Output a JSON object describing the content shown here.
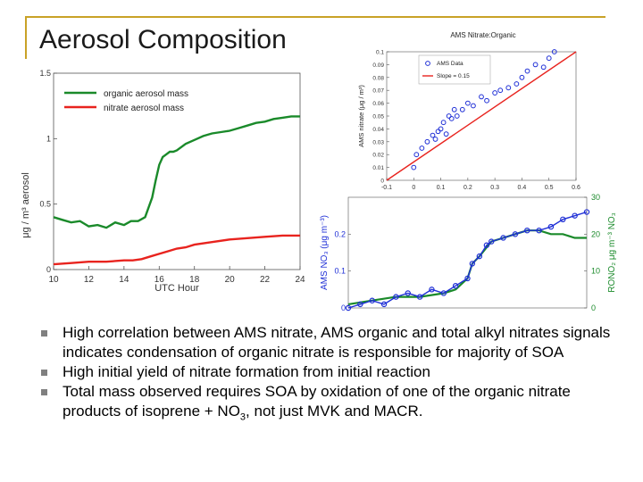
{
  "slide": {
    "title": "Aerosol Composition",
    "bullets": [
      {
        "text": "High correlation between AMS nitrate, AMS organic and total alkyl nitrates signals indicates condensation of organic nitrate is responsible for majority of SOA"
      },
      {
        "text": "High initial yield of nitrate formation from initial reaction"
      },
      {
        "pre": "Total mass observed requires SOA by oxidation of one of the organic nitrate products of isoprene + NO",
        "sub": "3",
        "post": ", not just MVK and MACR."
      }
    ]
  },
  "chart_data": [
    {
      "type": "line",
      "title": "",
      "xlabel": "UTC Hour",
      "ylabel": "μg / m³ aerosol",
      "xlim": [
        10,
        24
      ],
      "ylim": [
        0,
        1.5
      ],
      "xticks": [
        "10",
        "12",
        "14",
        "16",
        "18",
        "20",
        "22",
        "24"
      ],
      "yticks": [
        "0",
        "0.5",
        "1",
        "1.5"
      ],
      "legend_position": "top-left",
      "grid": false,
      "series": [
        {
          "name": "organic aerosol mass",
          "color": "#1a8a2a",
          "x": [
            10,
            10.5,
            11,
            11.5,
            12,
            12.5,
            13,
            13.5,
            14,
            14.4,
            14.8,
            15.2,
            15.6,
            15.8,
            16.0,
            16.2,
            16.4,
            16.6,
            16.8,
            17.0,
            17.5,
            18,
            18.5,
            19,
            19.5,
            20,
            20.5,
            21,
            21.5,
            22,
            22.5,
            23,
            23.5,
            24
          ],
          "values": [
            0.4,
            0.38,
            0.36,
            0.37,
            0.33,
            0.34,
            0.32,
            0.36,
            0.34,
            0.37,
            0.37,
            0.4,
            0.55,
            0.68,
            0.8,
            0.86,
            0.88,
            0.9,
            0.9,
            0.91,
            0.96,
            0.99,
            1.02,
            1.04,
            1.05,
            1.06,
            1.08,
            1.1,
            1.12,
            1.13,
            1.15,
            1.16,
            1.17,
            1.17
          ]
        },
        {
          "name": "nitrate aerosol mass",
          "color": "#e8231e",
          "x": [
            10,
            11,
            12,
            13,
            14,
            14.5,
            15,
            15.5,
            16,
            16.5,
            17,
            17.5,
            18,
            19,
            20,
            21,
            22,
            23,
            24
          ],
          "values": [
            0.04,
            0.05,
            0.06,
            0.06,
            0.07,
            0.07,
            0.08,
            0.1,
            0.12,
            0.14,
            0.16,
            0.17,
            0.19,
            0.21,
            0.23,
            0.24,
            0.25,
            0.26,
            0.26
          ]
        }
      ]
    },
    {
      "type": "scatter",
      "title": "AMS Nitrate:Organic",
      "xlabel": "",
      "ylabel": "AMS nitrate (μg / m³)",
      "xlim": [
        -0.1,
        0.6
      ],
      "ylim": [
        0,
        0.1
      ],
      "xticks": [
        "-0.1",
        "0",
        "0.1",
        "0.2",
        "0.3",
        "0.4",
        "0.5",
        "0.6"
      ],
      "yticks": [
        "0",
        "0.01",
        "0.02",
        "0.03",
        "0.04",
        "0.05",
        "0.06",
        "0.07",
        "0.08",
        "0.09",
        "0.1"
      ],
      "legend_position": "top-left",
      "grid": false,
      "series": [
        {
          "name": "AMS Data",
          "color": "#1f2fd6",
          "marker": "circle",
          "x": [
            0.0,
            0.01,
            0.03,
            0.05,
            0.07,
            0.08,
            0.09,
            0.1,
            0.11,
            0.12,
            0.13,
            0.14,
            0.15,
            0.16,
            0.18,
            0.2,
            0.22,
            0.25,
            0.27,
            0.3,
            0.32,
            0.35,
            0.38,
            0.4,
            0.42,
            0.45,
            0.48,
            0.5,
            0.52
          ],
          "values": [
            0.01,
            0.02,
            0.025,
            0.03,
            0.035,
            0.032,
            0.038,
            0.04,
            0.045,
            0.036,
            0.05,
            0.048,
            0.055,
            0.05,
            0.055,
            0.06,
            0.058,
            0.065,
            0.062,
            0.068,
            0.07,
            0.072,
            0.075,
            0.08,
            0.085,
            0.09,
            0.088,
            0.095,
            0.1
          ]
        },
        {
          "name": "Slope = 0.15",
          "color": "#e8231e",
          "type": "line",
          "x": [
            -0.1,
            0.6
          ],
          "values": [
            -0.012,
            0.1
          ]
        }
      ]
    },
    {
      "type": "line",
      "title": "",
      "xlabel": "",
      "ylabel": "AMS NO₃ (μg m⁻³)",
      "y2label": "RONO₂ μg m⁻³ NO₃",
      "ylim": [
        0,
        0.3
      ],
      "y2lim": [
        0,
        30
      ],
      "yticks": [
        "0",
        "0.1",
        "0.2"
      ],
      "y2ticks": [
        "0",
        "10",
        "20",
        "30"
      ],
      "grid": false,
      "series": [
        {
          "name": "AMS NO3",
          "color": "#1f2fd6",
          "marker": "circle",
          "x": [
            0,
            0.05,
            0.1,
            0.15,
            0.2,
            0.25,
            0.3,
            0.35,
            0.4,
            0.45,
            0.5,
            0.52,
            0.55,
            0.58,
            0.6,
            0.65,
            0.7,
            0.75,
            0.8,
            0.85,
            0.9,
            0.95,
            1.0
          ],
          "values": [
            0.0,
            0.01,
            0.02,
            0.01,
            0.03,
            0.04,
            0.03,
            0.05,
            0.04,
            0.06,
            0.08,
            0.12,
            0.14,
            0.17,
            0.18,
            0.19,
            0.2,
            0.21,
            0.21,
            0.22,
            0.24,
            0.25,
            0.26
          ]
        },
        {
          "name": "RONO2",
          "color": "#1a8a2a",
          "axis": "y2",
          "x": [
            0,
            0.1,
            0.2,
            0.3,
            0.4,
            0.45,
            0.5,
            0.52,
            0.55,
            0.6,
            0.65,
            0.7,
            0.75,
            0.8,
            0.85,
            0.9,
            0.95,
            1.0
          ],
          "values": [
            1,
            2,
            3,
            3,
            4,
            5,
            8,
            12,
            14,
            18,
            19,
            20,
            21,
            21,
            20,
            20,
            19,
            19
          ]
        }
      ]
    }
  ]
}
